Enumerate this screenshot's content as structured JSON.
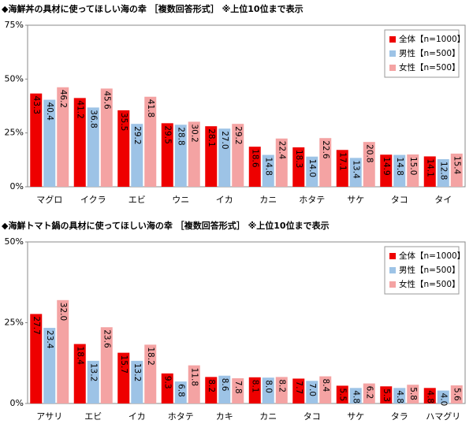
{
  "chart_data": [
    {
      "type": "bar",
      "title": "◆海鮮丼の具材に使ってほしい海の幸 ［複数回答形式］ ※上位10位まで表示",
      "categories": [
        "マグロ",
        "イクラ",
        "エビ",
        "ウニ",
        "イカ",
        "カニ",
        "ホタテ",
        "サケ",
        "タコ",
        "タイ"
      ],
      "series": [
        {
          "name": "全体【n=1000】",
          "color": "#ee0000",
          "values": [
            43.3,
            41.2,
            35.5,
            29.5,
            28.1,
            18.6,
            18.3,
            17.1,
            14.9,
            14.1
          ],
          "value_labels": [
            "43.3",
            "41.2",
            "35.5",
            "29.5",
            "28.1",
            "18.6",
            "18.3",
            "17.1",
            "14.9",
            "14.1"
          ]
        },
        {
          "name": "男性【n=500】",
          "color": "#9dc3e6",
          "values": [
            40.4,
            36.8,
            29.2,
            28.8,
            27.0,
            14.8,
            14.0,
            13.4,
            14.8,
            12.8
          ],
          "value_labels": [
            "40.4",
            "36.8",
            "29.2",
            "28.8",
            "27.0",
            "14.8",
            "14.0",
            "13.4",
            "14.8",
            "12.8"
          ]
        },
        {
          "name": "女性【n=500】",
          "color": "#f4a3a3",
          "values": [
            46.2,
            45.6,
            41.8,
            30.2,
            29.2,
            22.4,
            22.6,
            20.8,
            15.0,
            15.4
          ],
          "value_labels": [
            "46.2",
            "45.6",
            "41.8",
            "30.2",
            "29.2",
            "22.4",
            "22.6",
            "20.8",
            "15.0",
            "15.4"
          ]
        }
      ],
      "ylim": [
        0,
        75
      ],
      "yticks": [
        {
          "value": 0,
          "label": "0%"
        },
        {
          "value": 25,
          "label": "25%"
        },
        {
          "value": 50,
          "label": "50%"
        },
        {
          "value": 75,
          "label": "75%"
        }
      ],
      "legend": "upper right"
    },
    {
      "type": "bar",
      "title": "◆海鮮トマト鍋の具材に使ってほしい海の幸 ［複数回答形式］ ※上位10位まで表示",
      "categories": [
        "アサリ",
        "エビ",
        "イカ",
        "ホタテ",
        "カキ",
        "カニ",
        "タコ",
        "サケ",
        "タラ",
        "ハマグリ"
      ],
      "series": [
        {
          "name": "全体【n=1000】",
          "color": "#ee0000",
          "values": [
            27.7,
            18.4,
            15.7,
            9.3,
            8.2,
            8.1,
            7.7,
            5.5,
            5.3,
            4.8
          ],
          "value_labels": [
            "27.7",
            "18.4",
            "15.7",
            "9.3",
            "8.2",
            "8.1",
            "7.7",
            "5.5",
            "5.3",
            "4.8"
          ]
        },
        {
          "name": "男性【n=500】",
          "color": "#9dc3e6",
          "values": [
            23.4,
            13.2,
            13.2,
            6.8,
            8.6,
            8.0,
            7.0,
            4.8,
            4.8,
            4.0
          ],
          "value_labels": [
            "23.4",
            "13.2",
            "13.2",
            "6.8",
            "8.6",
            "8.0",
            "7.0",
            "4.8",
            "4.8",
            "4.0"
          ]
        },
        {
          "name": "女性【n=500】",
          "color": "#f4a3a3",
          "values": [
            32.0,
            23.6,
            18.2,
            11.8,
            7.8,
            8.2,
            8.4,
            6.2,
            5.8,
            5.6
          ],
          "value_labels": [
            "32.0",
            "23.6",
            "18.2",
            "11.8",
            "7.8",
            "8.2",
            "8.4",
            "6.2",
            "5.8",
            "5.6"
          ]
        }
      ],
      "ylim": [
        0,
        50
      ],
      "yticks": [
        {
          "value": 0,
          "label": "0%"
        },
        {
          "value": 25,
          "label": "25%"
        },
        {
          "value": 50,
          "label": "50%"
        }
      ],
      "legend": "upper right"
    }
  ]
}
